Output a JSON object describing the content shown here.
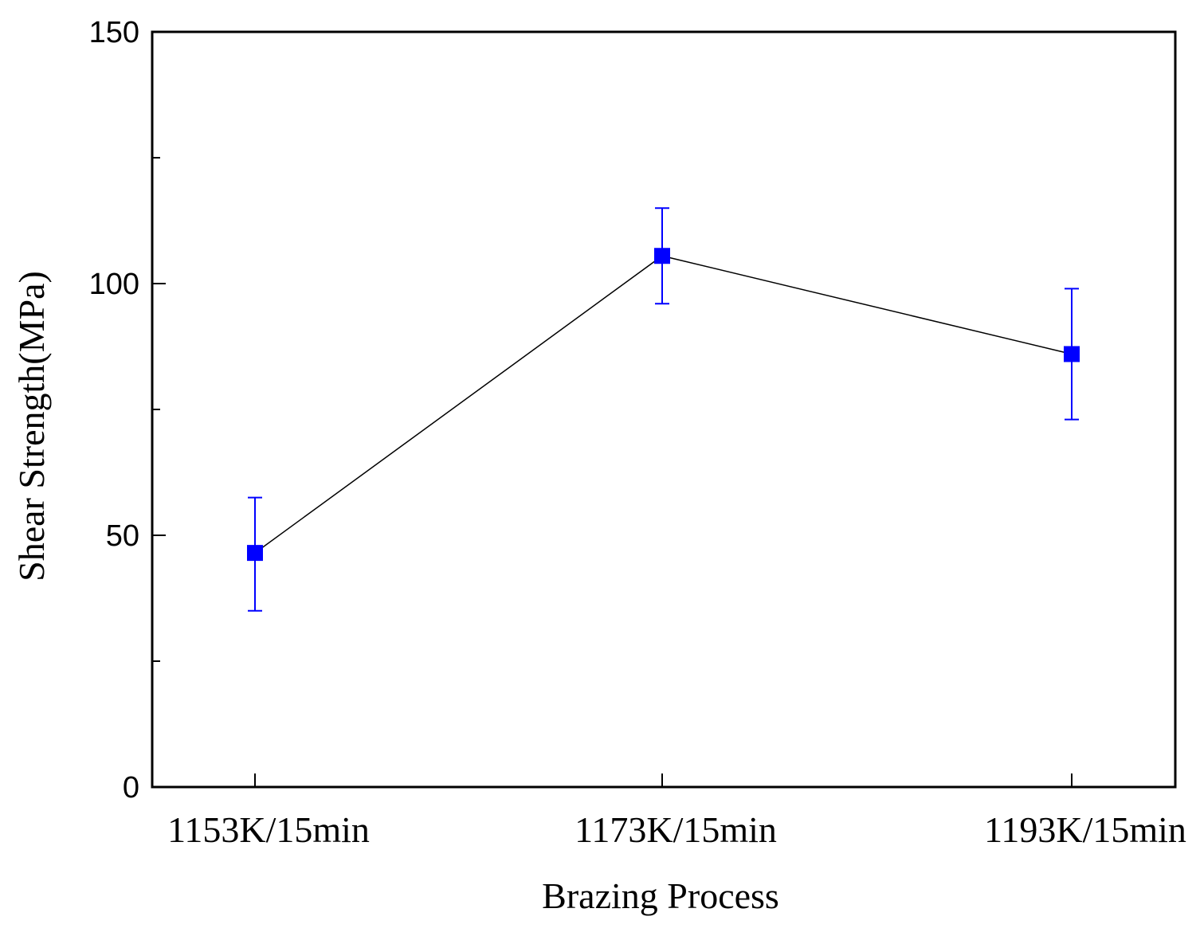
{
  "chart_data": {
    "type": "line",
    "title": "",
    "xlabel": "Brazing Process",
    "ylabel": "Shear Strength(MPa)",
    "categories": [
      "1153K/15min",
      "1173K/15min",
      "1193K/15min"
    ],
    "ylim": [
      0,
      150
    ],
    "yticks": [
      0,
      50,
      100,
      150
    ],
    "yticks_labels": [
      "0",
      "50",
      "100",
      "150"
    ],
    "y_minor_ticks": [
      25,
      75,
      125
    ],
    "grid": false,
    "legend": "none",
    "series": [
      {
        "values": [
          46.5,
          105.5,
          86
        ],
        "error_low": [
          35,
          96,
          73
        ],
        "error_high": [
          57.5,
          115,
          99
        ],
        "marker": "square",
        "marker_color": "#0000ff",
        "line_color": "#000000",
        "errorbar_color": "#0000ff"
      }
    ]
  }
}
